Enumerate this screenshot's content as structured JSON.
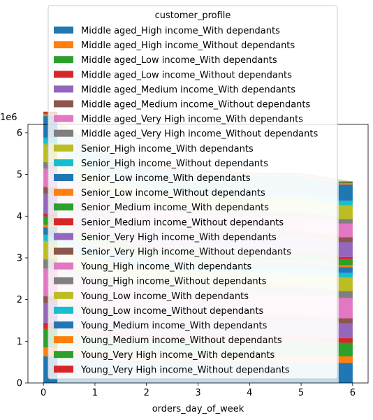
{
  "chart_data": {
    "type": "area",
    "stacked": true,
    "xlabel": "orders_day_of_week",
    "ylabel": "",
    "y_offset_label": "1e6",
    "xlim": [
      -0.3,
      6.3
    ],
    "ylim": [
      0,
      6200000
    ],
    "x_ticks": [
      0,
      1,
      2,
      3,
      4,
      5,
      6
    ],
    "y_ticks": [
      0,
      1,
      2,
      3,
      4,
      5,
      6
    ],
    "legend": {
      "title": "customer_profile",
      "placement": "upper-center"
    },
    "x": [
      0,
      1,
      2,
      3,
      4,
      5,
      6
    ],
    "colors": [
      "#1f77b4",
      "#ff7f0e",
      "#2ca02c",
      "#d62728",
      "#9467bd",
      "#8c564b",
      "#e377c2",
      "#7f7f7f",
      "#bcbd22",
      "#17becf"
    ],
    "series": [
      {
        "name": "Middle aged_High income_With dependants",
        "values": [
          640000,
          560000,
          520000,
          505000,
          500000,
          498000,
          480000
        ]
      },
      {
        "name": "Middle aged_High income_Without dependants",
        "values": [
          215000,
          188000,
          170000,
          164000,
          163000,
          163000,
          157000
        ]
      },
      {
        "name": "Middle aged_Low income_With dependants",
        "values": [
          440000,
          385000,
          355000,
          345000,
          341000,
          340000,
          327000
        ]
      },
      {
        "name": "Middle aged_Low income_Without dependants",
        "values": [
          150000,
          132000,
          120000,
          116000,
          115000,
          115000,
          111000
        ]
      },
      {
        "name": "Middle aged_Medium income_With dependants",
        "values": [
          480000,
          420000,
          390000,
          378000,
          373000,
          372000,
          356000
        ]
      },
      {
        "name": "Middle aged_Medium income_Without dependants",
        "values": [
          160000,
          140000,
          130000,
          126000,
          124000,
          124000,
          119000
        ]
      },
      {
        "name": "Middle aged_Very High income_With dependants",
        "values": [
          660000,
          578000,
          535000,
          518000,
          513000,
          511000,
          490000
        ]
      },
      {
        "name": "Middle aged_Very High income_Without dependants",
        "values": [
          220000,
          193000,
          178000,
          173000,
          171000,
          170000,
          163000
        ]
      },
      {
        "name": "Senior_High income_With dependants",
        "values": [
          440000,
          385000,
          357000,
          346000,
          342000,
          341000,
          327000
        ]
      },
      {
        "name": "Senior_High income_Without dependants",
        "values": [
          150000,
          131000,
          121000,
          117000,
          116000,
          116000,
          111000
        ]
      },
      {
        "name": "Senior_Low income_With dependants",
        "values": [
          180000,
          158000,
          146000,
          141000,
          140000,
          139000,
          134000
        ]
      },
      {
        "name": "Senior_Low income_Without dependants",
        "values": [
          60000,
          53000,
          49000,
          47000,
          47000,
          46000,
          45000
        ]
      },
      {
        "name": "Senior_Medium income_With dependants",
        "values": [
          200000,
          175000,
          162000,
          157000,
          155000,
          155000,
          148000
        ]
      },
      {
        "name": "Senior_Medium income_Without dependants",
        "values": [
          70000,
          61000,
          57000,
          55000,
          54000,
          54000,
          52000
        ]
      },
      {
        "name": "Senior_Very High income_With dependants",
        "values": [
          480000,
          420000,
          389000,
          377000,
          373000,
          371000,
          356000
        ]
      },
      {
        "name": "Senior_Very High income_Without dependants",
        "values": [
          160000,
          140000,
          130000,
          126000,
          124000,
          124000,
          119000
        ]
      },
      {
        "name": "Young_High income_With dependants",
        "values": [
          440000,
          385000,
          357000,
          346000,
          342000,
          341000,
          327000
        ]
      },
      {
        "name": "Young_High income_Without dependants",
        "values": [
          150000,
          131000,
          121000,
          117000,
          116000,
          116000,
          111000
        ]
      },
      {
        "name": "Young_Low income_With dependants",
        "values": [
          440000,
          385000,
          357000,
          346000,
          342000,
          341000,
          327000
        ]
      },
      {
        "name": "Young_Low income_Without dependants",
        "values": [
          150000,
          131000,
          121000,
          117000,
          116000,
          116000,
          111000
        ]
      },
      {
        "name": "Young_Medium income_With dependants",
        "values": [
          520000,
          455000,
          422000,
          408000,
          404000,
          402000,
          386000
        ]
      },
      {
        "name": "Young_Medium income_Without dependants",
        "values": [
          40000,
          35000,
          32000,
          31000,
          31000,
          31000,
          30000
        ]
      },
      {
        "name": "Young_Very High income_With dependants",
        "values": [
          30000,
          26000,
          24000,
          23000,
          23000,
          23000,
          22000
        ]
      },
      {
        "name": "Young_Very High income_Without dependants",
        "values": [
          30000,
          26000,
          24000,
          23000,
          23000,
          23000,
          22000
        ]
      }
    ]
  }
}
